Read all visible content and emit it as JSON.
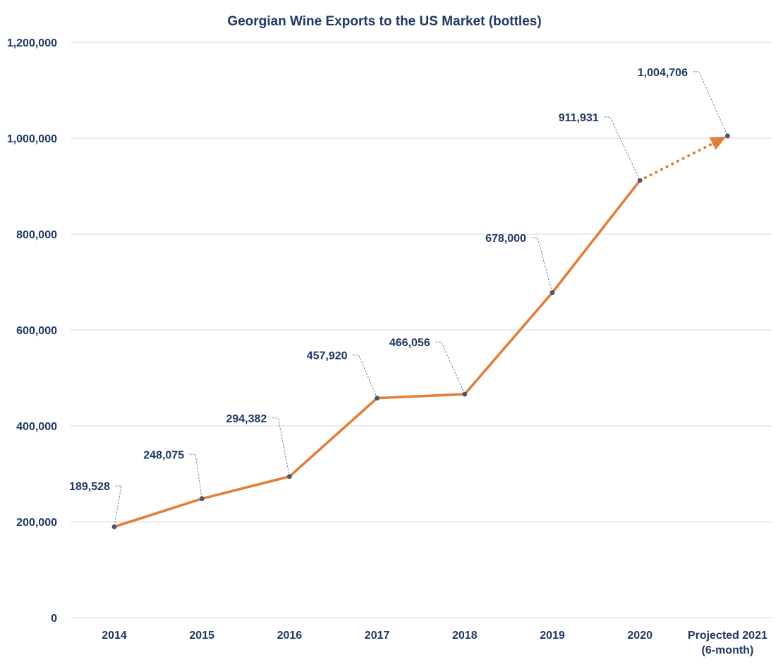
{
  "chart_data": {
    "type": "line",
    "title": "Georgian Wine Exports to the US Market (bottles)",
    "xlabel": "",
    "ylabel": "",
    "ylim": [
      0,
      1200000
    ],
    "yticks": [
      0,
      200000,
      400000,
      600000,
      800000,
      1000000,
      1200000
    ],
    "ytick_labels": [
      "0",
      "200,000",
      "400,000",
      "600,000",
      "800,000",
      "1,000,000",
      "1,200,000"
    ],
    "grid": true,
    "categories": [
      "2014",
      "2015",
      "2016",
      "2017",
      "2018",
      "2019",
      "2020",
      "Projected 2021|(6-month)"
    ],
    "values": [
      189528,
      248075,
      294382,
      457920,
      466056,
      678000,
      911931,
      1004706
    ],
    "data_labels": [
      "189,528",
      "248,075",
      "294,382",
      "457,920",
      "466,056",
      "678,000",
      "911,931",
      "1,004,706"
    ],
    "projected_from_index": 6,
    "colors": {
      "line": "#e07f3a",
      "marker": "#4d5566",
      "text": "#1f3864",
      "leader": "#4a6fb5",
      "grid": "#d9d9d9"
    }
  }
}
